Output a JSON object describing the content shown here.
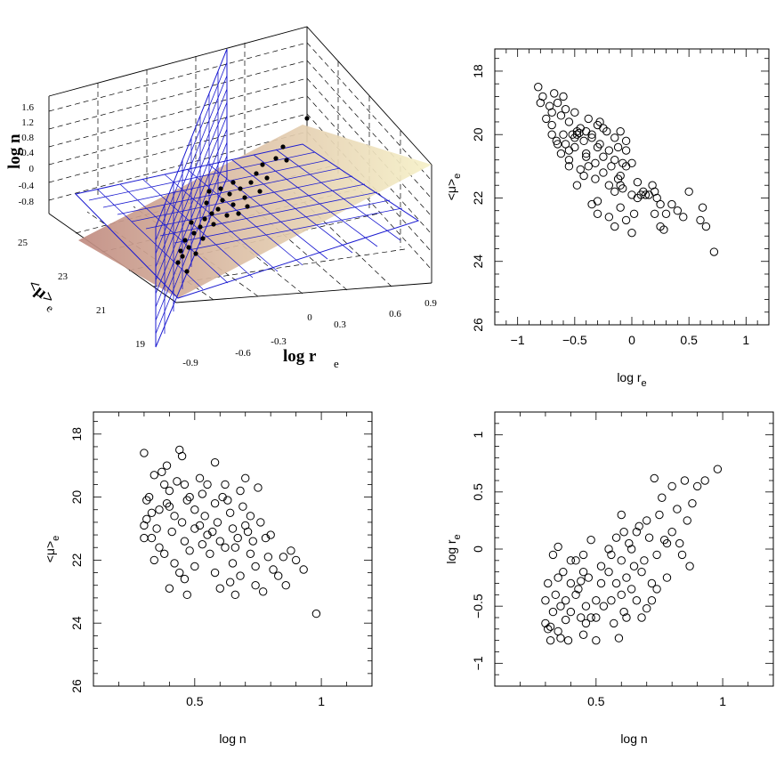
{
  "chart_data": [
    {
      "id": "panel_3d",
      "type": "scatter",
      "subtype": "3d-scatter-with-fitted-plane",
      "title": "",
      "axes": {
        "z": {
          "label": "log n",
          "ticks": [
            "1.6",
            "1.2",
            "0.8",
            "0.4",
            "0",
            "-0.4",
            "-0.8"
          ]
        },
        "y": {
          "label_main": "<μ>",
          "label_sub": "e",
          "ticks": [
            "25",
            "23",
            "21",
            "19"
          ]
        },
        "x": {
          "label_main": "log r",
          "label_sub": "e",
          "ticks": [
            "-0.9",
            "-0.6",
            "-0.3",
            "0",
            "0.3",
            "0.6",
            "0.9"
          ]
        }
      },
      "planes": [
        "fundamental plane (shaded)",
        "blue grid plane",
        "blue grid plane"
      ]
    },
    {
      "id": "panel_mu_vs_logre",
      "type": "scatter",
      "xlabel_main": "log r",
      "xlabel_sub": "e",
      "ylabel_main": "<μ>",
      "ylabel_sub": "e",
      "xlim": [
        -1.2,
        1.2
      ],
      "ylim": [
        26,
        17.3
      ],
      "y_inverted": true,
      "xticks": [
        -1,
        -0.5,
        0,
        0.5,
        1
      ],
      "xticklabels": [
        "−1",
        "−0.5",
        "0",
        "0.5",
        "1"
      ],
      "yticks": [
        18,
        20,
        22,
        24,
        26
      ],
      "yticklabels": [
        "18",
        "20",
        "22",
        "24",
        "26"
      ],
      "points": [
        [
          -0.82,
          18.5
        ],
        [
          -0.78,
          18.8
        ],
        [
          -0.8,
          19.0
        ],
        [
          -0.72,
          19.1
        ],
        [
          -0.68,
          18.7
        ],
        [
          -0.7,
          19.3
        ],
        [
          -0.65,
          19.0
        ],
        [
          -0.6,
          18.8
        ],
        [
          -0.75,
          19.5
        ],
        [
          -0.7,
          19.7
        ],
        [
          -0.62,
          19.4
        ],
        [
          -0.58,
          19.2
        ],
        [
          -0.55,
          19.6
        ],
        [
          -0.5,
          19.3
        ],
        [
          -0.48,
          19.9
        ],
        [
          -0.52,
          20.0
        ],
        [
          -0.5,
          20.1
        ],
        [
          -0.45,
          19.8
        ],
        [
          -0.42,
          20.2
        ],
        [
          -0.6,
          20.0
        ],
        [
          -0.65,
          20.3
        ],
        [
          -0.7,
          20.0
        ],
        [
          -0.55,
          20.5
        ],
        [
          -0.5,
          20.4
        ],
        [
          -0.4,
          20.6
        ],
        [
          -0.35,
          20.0
        ],
        [
          -0.3,
          19.7
        ],
        [
          -0.28,
          20.3
        ],
        [
          -0.32,
          20.9
        ],
        [
          -0.38,
          21.0
        ],
        [
          -0.45,
          21.1
        ],
        [
          -0.48,
          21.6
        ],
        [
          -0.25,
          20.7
        ],
        [
          -0.2,
          20.5
        ],
        [
          -0.18,
          21.0
        ],
        [
          -0.15,
          20.8
        ],
        [
          -0.1,
          21.3
        ],
        [
          -0.12,
          20.4
        ],
        [
          -0.08,
          20.9
        ],
        [
          -0.05,
          21.0
        ],
        [
          -0.2,
          21.6
        ],
        [
          -0.15,
          21.8
        ],
        [
          -0.1,
          21.6
        ],
        [
          -0.05,
          20.5
        ],
        [
          0.0,
          20.9
        ],
        [
          0.0,
          21.9
        ],
        [
          0.05,
          22.0
        ],
        [
          0.08,
          21.9
        ],
        [
          0.1,
          21.8
        ],
        [
          0.15,
          21.9
        ],
        [
          -0.35,
          20.1
        ],
        [
          -0.3,
          20.4
        ],
        [
          -0.25,
          19.8
        ],
        [
          -0.4,
          19.9
        ],
        [
          -0.38,
          19.5
        ],
        [
          -0.28,
          19.6
        ],
        [
          -0.22,
          19.9
        ],
        [
          -0.15,
          20.1
        ],
        [
          -0.1,
          19.9
        ],
        [
          -0.05,
          20.2
        ],
        [
          0.2,
          21.8
        ],
        [
          0.22,
          22.0
        ],
        [
          0.25,
          22.2
        ],
        [
          0.3,
          22.5
        ],
        [
          0.35,
          22.2
        ],
        [
          0.4,
          22.4
        ],
        [
          0.45,
          22.6
        ],
        [
          0.5,
          21.8
        ],
        [
          0.6,
          22.7
        ],
        [
          0.62,
          22.3
        ],
        [
          0.65,
          22.9
        ],
        [
          0.72,
          23.7
        ],
        [
          0.25,
          22.9
        ],
        [
          0.28,
          23.0
        ],
        [
          0.2,
          22.5
        ],
        [
          0.0,
          23.1
        ],
        [
          -0.05,
          22.7
        ],
        [
          -0.15,
          22.9
        ],
        [
          -0.2,
          22.6
        ],
        [
          -0.3,
          22.5
        ],
        [
          -0.35,
          22.2
        ],
        [
          -0.3,
          22.1
        ],
        [
          -0.48,
          20.0
        ],
        [
          -0.46,
          19.95
        ],
        [
          -0.62,
          20.6
        ],
        [
          -0.58,
          20.3
        ],
        [
          -0.55,
          20.8
        ],
        [
          -0.4,
          20.7
        ],
        [
          -0.32,
          21.4
        ],
        [
          -0.25,
          21.2
        ],
        [
          -0.12,
          21.4
        ],
        [
          -0.08,
          21.7
        ],
        [
          0.05,
          21.5
        ],
        [
          0.12,
          21.9
        ],
        [
          0.18,
          21.6
        ],
        [
          0.02,
          22.5
        ],
        [
          -0.1,
          22.3
        ],
        [
          -0.42,
          21.3
        ],
        [
          -0.55,
          21.0
        ],
        [
          -0.66,
          20.2
        ]
      ]
    },
    {
      "id": "panel_mu_vs_logn",
      "type": "scatter",
      "xlabel": "log n",
      "ylabel_main": "<μ>",
      "ylabel_sub": "e",
      "xlim": [
        0.1,
        1.2
      ],
      "ylim": [
        26,
        17.3
      ],
      "y_inverted": true,
      "xticks": [
        0.5,
        1
      ],
      "xticklabels": [
        "0.5",
        "1"
      ],
      "yticks": [
        18,
        20,
        22,
        24,
        26
      ],
      "yticklabels": [
        "18",
        "20",
        "22",
        "24",
        "26"
      ],
      "points": [
        [
          0.3,
          18.6
        ],
        [
          0.32,
          20.0
        ],
        [
          0.31,
          20.1
        ],
        [
          0.33,
          20.5
        ],
        [
          0.3,
          20.9
        ],
        [
          0.3,
          21.3
        ],
        [
          0.35,
          21.0
        ],
        [
          0.36,
          21.6
        ],
        [
          0.34,
          22.0
        ],
        [
          0.38,
          21.8
        ],
        [
          0.37,
          19.2
        ],
        [
          0.39,
          19.0
        ],
        [
          0.4,
          19.8
        ],
        [
          0.4,
          20.3
        ],
        [
          0.42,
          20.6
        ],
        [
          0.41,
          21.1
        ],
        [
          0.43,
          19.5
        ],
        [
          0.44,
          18.5
        ],
        [
          0.45,
          18.7
        ],
        [
          0.46,
          19.6
        ],
        [
          0.47,
          20.1
        ],
        [
          0.45,
          20.8
        ],
        [
          0.46,
          21.4
        ],
        [
          0.48,
          21.7
        ],
        [
          0.42,
          22.1
        ],
        [
          0.4,
          22.9
        ],
        [
          0.44,
          22.4
        ],
        [
          0.46,
          22.6
        ],
        [
          0.47,
          23.1
        ],
        [
          0.5,
          20.4
        ],
        [
          0.5,
          21.0
        ],
        [
          0.52,
          19.4
        ],
        [
          0.53,
          19.9
        ],
        [
          0.54,
          20.6
        ],
        [
          0.55,
          21.2
        ],
        [
          0.56,
          21.8
        ],
        [
          0.58,
          18.9
        ],
        [
          0.58,
          20.2
        ],
        [
          0.59,
          20.8
        ],
        [
          0.6,
          21.4
        ],
        [
          0.58,
          22.4
        ],
        [
          0.6,
          22.9
        ],
        [
          0.62,
          19.6
        ],
        [
          0.63,
          20.1
        ],
        [
          0.64,
          20.5
        ],
        [
          0.65,
          21.0
        ],
        [
          0.66,
          21.6
        ],
        [
          0.65,
          22.1
        ],
        [
          0.64,
          22.7
        ],
        [
          0.66,
          23.1
        ],
        [
          0.68,
          19.8
        ],
        [
          0.69,
          20.3
        ],
        [
          0.7,
          20.9
        ],
        [
          0.71,
          21.1
        ],
        [
          0.72,
          20.6
        ],
        [
          0.73,
          21.4
        ],
        [
          0.74,
          22.2
        ],
        [
          0.75,
          19.7
        ],
        [
          0.76,
          20.8
        ],
        [
          0.78,
          21.3
        ],
        [
          0.79,
          21.9
        ],
        [
          0.8,
          21.2
        ],
        [
          0.81,
          22.3
        ],
        [
          0.83,
          22.5
        ],
        [
          0.85,
          21.9
        ],
        [
          0.86,
          22.8
        ],
        [
          0.88,
          21.7
        ],
        [
          0.9,
          22.0
        ],
        [
          0.93,
          22.3
        ],
        [
          0.98,
          23.7
        ],
        [
          0.77,
          23.0
        ],
        [
          0.74,
          22.8
        ],
        [
          0.34,
          19.3
        ],
        [
          0.36,
          20.4
        ],
        [
          0.38,
          19.6
        ],
        [
          0.52,
          20.9
        ],
        [
          0.55,
          19.6
        ],
        [
          0.57,
          21.1
        ],
        [
          0.61,
          20.0
        ],
        [
          0.67,
          21.3
        ],
        [
          0.7,
          19.4
        ],
        [
          0.72,
          21.8
        ],
        [
          0.31,
          20.7
        ],
        [
          0.33,
          21.3
        ],
        [
          0.39,
          20.2
        ],
        [
          0.48,
          20.0
        ],
        [
          0.5,
          22.2
        ],
        [
          0.53,
          21.5
        ],
        [
          0.62,
          21.6
        ],
        [
          0.68,
          22.5
        ]
      ]
    },
    {
      "id": "panel_logre_vs_logn",
      "type": "scatter",
      "xlabel": "log n",
      "ylabel_main": "log r",
      "ylabel_sub": "e",
      "xlim": [
        0.1,
        1.2
      ],
      "ylim": [
        -1.2,
        1.2
      ],
      "y_inverted": false,
      "xticks": [
        0.5,
        1
      ],
      "xticklabels": [
        "0.5",
        "1"
      ],
      "yticks": [
        -1,
        -0.5,
        0,
        0.5,
        1
      ],
      "yticklabels": [
        "−1",
        "−0.5",
        "0",
        "0.5",
        "1"
      ],
      "points": [
        [
          0.3,
          -0.65
        ],
        [
          0.31,
          -0.7
        ],
        [
          0.32,
          -0.68
        ],
        [
          0.3,
          -0.45
        ],
        [
          0.31,
          -0.3
        ],
        [
          0.33,
          -0.55
        ],
        [
          0.34,
          -0.4
        ],
        [
          0.35,
          -0.72
        ],
        [
          0.36,
          -0.5
        ],
        [
          0.35,
          0.02
        ],
        [
          0.37,
          -0.2
        ],
        [
          0.38,
          -0.45
        ],
        [
          0.38,
          -0.62
        ],
        [
          0.39,
          -0.8
        ],
        [
          0.4,
          -0.3
        ],
        [
          0.4,
          -0.55
        ],
        [
          0.42,
          -0.1
        ],
        [
          0.43,
          -0.35
        ],
        [
          0.44,
          -0.6
        ],
        [
          0.45,
          -0.2
        ],
        [
          0.45,
          -0.75
        ],
        [
          0.46,
          -0.5
        ],
        [
          0.47,
          -0.25
        ],
        [
          0.48,
          -0.6
        ],
        [
          0.5,
          -0.45
        ],
        [
          0.5,
          -0.8
        ],
        [
          0.52,
          -0.3
        ],
        [
          0.53,
          -0.5
        ],
        [
          0.55,
          -0.2
        ],
        [
          0.56,
          -0.45
        ],
        [
          0.57,
          -0.65
        ],
        [
          0.58,
          -0.3
        ],
        [
          0.6,
          -0.1
        ],
        [
          0.6,
          -0.4
        ],
        [
          0.61,
          -0.55
        ],
        [
          0.62,
          -0.25
        ],
        [
          0.63,
          0.05
        ],
        [
          0.64,
          -0.35
        ],
        [
          0.65,
          -0.15
        ],
        [
          0.66,
          -0.45
        ],
        [
          0.67,
          0.2
        ],
        [
          0.68,
          -0.2
        ],
        [
          0.69,
          -0.1
        ],
        [
          0.7,
          -0.52
        ],
        [
          0.71,
          0.1
        ],
        [
          0.72,
          -0.3
        ],
        [
          0.73,
          0.62
        ],
        [
          0.74,
          -0.05
        ],
        [
          0.75,
          0.3
        ],
        [
          0.76,
          0.45
        ],
        [
          0.77,
          0.08
        ],
        [
          0.78,
          -0.25
        ],
        [
          0.8,
          0.55
        ],
        [
          0.8,
          0.15
        ],
        [
          0.82,
          0.35
        ],
        [
          0.83,
          0.05
        ],
        [
          0.85,
          0.6
        ],
        [
          0.86,
          0.25
        ],
        [
          0.87,
          -0.15
        ],
        [
          0.88,
          0.4
        ],
        [
          0.9,
          0.55
        ],
        [
          0.93,
          0.6
        ],
        [
          0.98,
          0.7
        ],
        [
          0.6,
          0.3
        ],
        [
          0.58,
          0.1
        ],
        [
          0.55,
          0.0
        ],
        [
          0.52,
          -0.15
        ],
        [
          0.48,
          0.08
        ],
        [
          0.45,
          -0.05
        ],
        [
          0.42,
          -0.4
        ],
        [
          0.4,
          -0.1
        ],
        [
          0.66,
          0.15
        ],
        [
          0.7,
          0.25
        ],
        [
          0.74,
          -0.35
        ],
        [
          0.62,
          -0.6
        ],
        [
          0.35,
          -0.25
        ],
        [
          0.33,
          -0.05
        ],
        [
          0.5,
          -0.6
        ],
        [
          0.56,
          -0.05
        ],
        [
          0.64,
          0.0
        ],
        [
          0.68,
          -0.6
        ],
        [
          0.72,
          -0.45
        ],
        [
          0.78,
          0.05
        ],
        [
          0.84,
          -0.05
        ],
        [
          0.32,
          -0.8
        ],
        [
          0.36,
          -0.78
        ],
        [
          0.44,
          -0.28
        ],
        [
          0.46,
          -0.65
        ],
        [
          0.59,
          -0.78
        ],
        [
          0.61,
          0.15
        ]
      ]
    }
  ]
}
